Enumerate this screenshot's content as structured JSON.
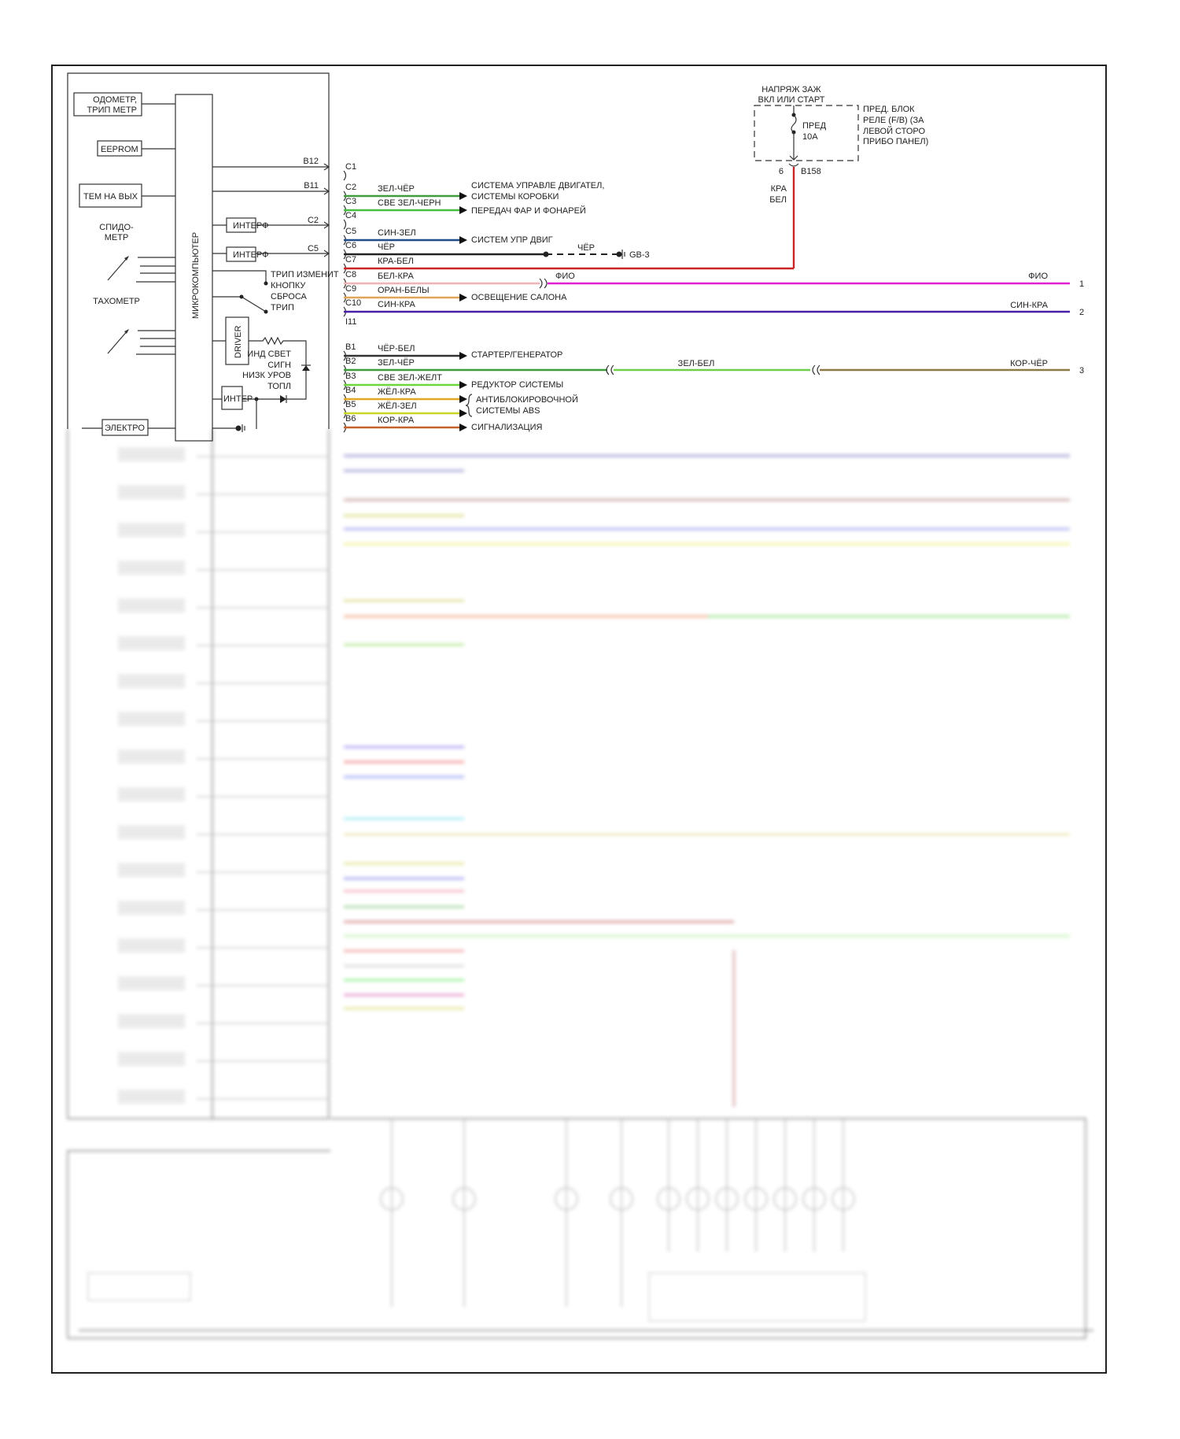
{
  "left_module": {
    "microcomputer": "МИКРОКОМПЬЮТЕР",
    "odometer": [
      "ОДОМЕТР,",
      "ТРИП МЕТР"
    ],
    "eeprom": "EEPROM",
    "temp_out": "ТЕМ НА ВЫХ",
    "speedometer": [
      "СПИДО-",
      "МЕТР"
    ],
    "tachometer": "ТАХОМЕТР",
    "interface1": "ИНТЕРФ",
    "interface2": "ИНТЕРФ",
    "interface3": "ИНТЕР",
    "driver": "DRIVER",
    "trip_switch": [
      "ТРИП ИЗМЕНИТ",
      "КНОПКУ",
      "СБРОСА",
      "ТРИП"
    ],
    "fuel_warning": [
      "ИНД СВЕТ",
      "СИГН",
      "НИЗК УРОВ",
      "ТОПЛ"
    ],
    "electro": "ЭЛЕКТРО",
    "out_b12": "B12",
    "out_b11": "B11",
    "out_c2": "C2",
    "out_c5": "C5"
  },
  "connector_c": {
    "pins": [
      "C1",
      "C2",
      "C3",
      "C4",
      "C5",
      "C6",
      "C7",
      "C8",
      "C9",
      "C10",
      "I11"
    ],
    "wires": [
      {
        "pin": "C2",
        "label": "ЗЕЛ-ЧЁР",
        "color": "#3f9e3a"
      },
      {
        "pin": "C3",
        "label": "СВЕ ЗЕЛ-ЧЕРН",
        "color": "#45c040"
      },
      {
        "pin": "C5",
        "label": "СИН-ЗЕЛ",
        "color": "#1d4f8c"
      },
      {
        "pin": "C6",
        "label": "ЧЁР",
        "color": "#222222"
      },
      {
        "pin": "C7",
        "label": "КРА-БЕЛ",
        "color": "#cc2424"
      },
      {
        "pin": "C8",
        "label": "БЕЛ-КРА",
        "color": "#f0b4b4"
      },
      {
        "pin": "C9",
        "label": "ОРАН-БЕЛЫ",
        "color": "#e2a457"
      },
      {
        "pin": "C10",
        "label": "СИН-КРА",
        "color": "#4a1fa8"
      }
    ],
    "destinations": {
      "engine": [
        "СИСТЕМА УПРАВЛЕ ДВИГАТЕЛ,",
        "СИСТЕМЫ КОРОБКИ"
      ],
      "lights": "ПЕРЕДАЧ ФАР И ФОНАРЕЙ",
      "engine_ctrl": "СИСТЕМ УПР ДВИГ",
      "interior": "ОСВЕЩЕНИЕ САЛОНА"
    },
    "ground_wire_label": "ЧЁР",
    "ground": "GB-3",
    "c8_far_label": "ФИО",
    "c8_far_color": "#e020d0"
  },
  "connector_b": {
    "pins": [
      "B1",
      "B2",
      "B3",
      "B4",
      "B5",
      "B6"
    ],
    "wires": [
      {
        "pin": "B1",
        "label": "ЧЁР-БЕЛ",
        "color": "#333333"
      },
      {
        "pin": "B2",
        "label": "ЗЕЛ-ЧЁР",
        "color": "#3f9e3a"
      },
      {
        "pin": "B3",
        "label": "СВЕ ЗЕЛ-ЖЕЛТ",
        "color": "#6ad83a"
      },
      {
        "pin": "B4",
        "label": "ЖЁЛ-КРА",
        "color": "#e2a824"
      },
      {
        "pin": "B5",
        "label": "ЖЁЛ-ЗЕЛ",
        "color": "#c8d624"
      },
      {
        "pin": "B6",
        "label": "КОР-КРА",
        "color": "#c4622a"
      }
    ],
    "destinations": {
      "starter": "СТАРТЕР/ГЕНЕРАТОР",
      "reducer": "РЕДУКТОР СИСТЕМЫ",
      "abs": [
        "АНТИБЛОКИРОВОЧНОЙ",
        "СИСТЕМЫ ABS"
      ],
      "alarm": "СИГНАЛИЗАЦИЯ"
    },
    "b2_mid_label": "ЗЕЛ-БЕЛ",
    "b2_mid_color": "#6fcf4a",
    "b2_far_label": "КОР-ЧЁР",
    "b2_far_color": "#8c7a44"
  },
  "fuse_block": {
    "supply": [
      "НАПРЯЖ ЗАЖ",
      "ВКЛ ИЛИ СТАРТ"
    ],
    "fuse": [
      "ПРЕД",
      "10A"
    ],
    "location": [
      "ПРЕД. БЛОК",
      "РЕЛЕ (F/B) (ЗА",
      "ЛЕВОЙ СТОРО",
      "ПРИБО ПАНЕЛ)"
    ],
    "pin": "6",
    "connector": "B158",
    "wire": [
      "КРА",
      "БЕЛ"
    ]
  },
  "outputs": [
    {
      "label": "ФИО",
      "num": "1"
    },
    {
      "label": "СИН-КРА",
      "num": "2"
    },
    {
      "label": "КОР-ЧЁР",
      "num": "3"
    }
  ]
}
